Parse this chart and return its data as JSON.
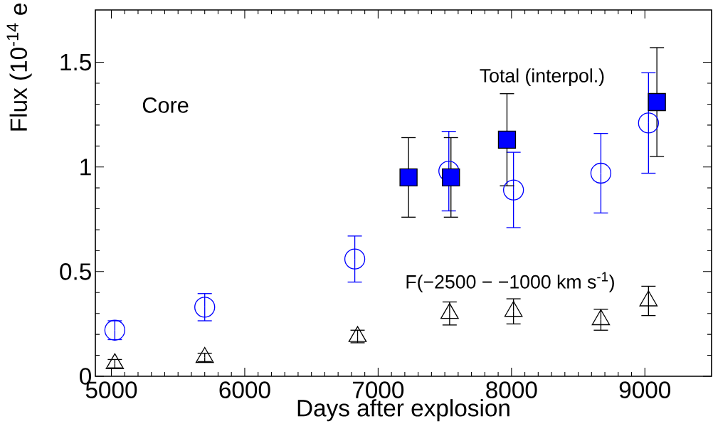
{
  "chart_data": {
    "type": "scatter",
    "xlabel": "Days after explosion",
    "ylabel": "Flux (10$^{-14}$ e",
    "annotations": [
      "Core"
    ],
    "xlim": [
      4880,
      9500
    ],
    "xticks": [
      5000,
      6000,
      7000,
      8000,
      9000
    ],
    "ylim": [
      0,
      1.75
    ],
    "yticks": [
      0,
      0.5,
      1,
      1.5
    ],
    "series": [
      {
        "color": "#0000ff",
        "marker": "circle",
        "x": [
          5026,
          5700,
          6825,
          7530,
          8015,
          8670,
          9027
        ],
        "values": [
          0.22,
          0.33,
          0.56,
          0.98,
          0.89,
          0.97,
          1.21
        ],
        "errors": [
          0.045,
          0.065,
          0.11,
          0.19,
          0.18,
          0.19,
          0.24
        ]
      },
      {
        "name": "Total (interpol.)",
        "color": "#0000ff",
        "marker": "square",
        "x": [
          7228,
          7546,
          7966,
          9090
        ],
        "values": [
          0.95,
          0.95,
          1.13,
          1.31
        ],
        "errors": [
          0.19,
          0.19,
          0.22,
          0.26
        ]
      },
      {
        "name": "F(−2500 − −1000 km s$^{-1}$)",
        "color": "#000000",
        "marker": "triangle",
        "x": [
          5026,
          5700,
          6846,
          7536,
          8015,
          8670,
          9027
        ],
        "values": [
          0.06,
          0.09,
          0.19,
          0.3,
          0.31,
          0.27,
          0.36
        ],
        "errors": [
          0.02,
          0.02,
          0.03,
          0.055,
          0.06,
          0.05,
          0.07
        ]
      }
    ]
  }
}
